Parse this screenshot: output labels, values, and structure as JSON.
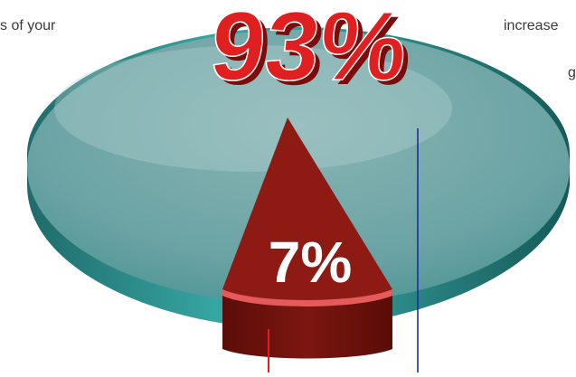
{
  "chart_data": {
    "type": "pie",
    "slices": [
      {
        "label": "93%",
        "value": 93,
        "color": "#5fa7a8"
      },
      {
        "label": "7%",
        "value": 7,
        "color": "#8a1a14"
      }
    ]
  },
  "text": {
    "left_snippet": "s of your",
    "right_snippet_1": "increase",
    "right_snippet_2": "g"
  },
  "colors": {
    "pie_top": "#6aa5a6",
    "pie_rim": "#2f8c8c",
    "slice_top": "#8e1a14",
    "slice_side": "#6e120e",
    "slice_edge": "#e75a5a",
    "label_main": "#e02020",
    "label_shadow": "#7b0c0c",
    "line_blue": "#1c2e9a",
    "line_red": "#e02020"
  }
}
